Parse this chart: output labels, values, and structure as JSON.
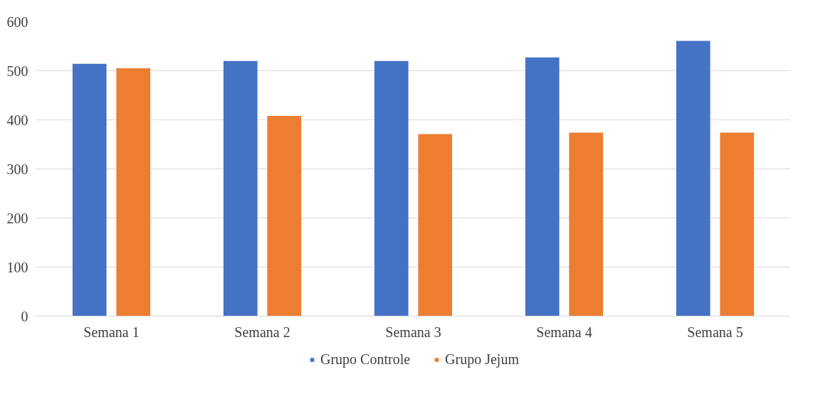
{
  "chart_data": {
    "type": "bar",
    "categories": [
      "Semana 1",
      "Semana 2",
      "Semana 3",
      "Semana 4",
      "Semana 5"
    ],
    "series": [
      {
        "name": "Grupo Controle",
        "color": "#4472c4",
        "values": [
          514,
          520,
          520,
          527,
          561
        ]
      },
      {
        "name": "Grupo Jejum",
        "color": "#ed7d31",
        "values": [
          505,
          408,
          371,
          374,
          374
        ]
      }
    ],
    "ylim": [
      0,
      600
    ],
    "yticks": [
      0,
      100,
      200,
      300,
      400,
      500,
      600
    ],
    "grid": "y",
    "legend": "bottom"
  }
}
